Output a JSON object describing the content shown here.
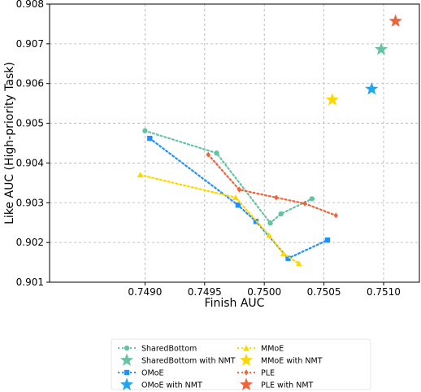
{
  "chart_data": {
    "type": "scatter",
    "title": "",
    "xlabel": "Finish AUC",
    "ylabel": "Like AUC (High-priority Task)",
    "xlim": [
      0.7482,
      0.7513
    ],
    "ylim": [
      0.901,
      0.908
    ],
    "xticks": [
      "0.7490",
      "0.7495",
      "0.7500",
      "0.7505",
      "0.7510"
    ],
    "yticks": [
      "0.901",
      "0.902",
      "0.903",
      "0.904",
      "0.905",
      "0.906",
      "0.907",
      "0.908"
    ],
    "grid": true,
    "legend_position": "bottom",
    "series": [
      {
        "name": "SharedBottom",
        "color": "#66c2a5",
        "marker": "circle",
        "style": "dotted-line",
        "x": [
          0.749,
          0.7496,
          0.75005,
          0.75014,
          0.7504
        ],
        "y": [
          0.90481,
          0.90425,
          0.90249,
          0.90272,
          0.9031
        ]
      },
      {
        "name": "SharedBottom with NMT",
        "color": "#66c2a5",
        "marker": "star",
        "style": "point",
        "x": [
          0.75098
        ],
        "y": [
          0.90686
        ]
      },
      {
        "name": "OMoE",
        "color": "#1e90ff",
        "marker": "square",
        "style": "dotted-line",
        "x": [
          0.74904,
          0.74978,
          0.74993,
          0.7502,
          0.75053
        ],
        "y": [
          0.90462,
          0.90294,
          0.90253,
          0.9016,
          0.90206
        ]
      },
      {
        "name": "OMoE with NMT",
        "color": "#1ea7f0",
        "marker": "star",
        "style": "point",
        "x": [
          0.7509
        ],
        "y": [
          0.90586
        ]
      },
      {
        "name": "MMoE",
        "color": "#ffd700",
        "marker": "triangle",
        "style": "dotted-line",
        "x": [
          0.74896,
          0.74976,
          0.75004,
          0.75016,
          0.75029
        ],
        "y": [
          0.9037,
          0.90313,
          0.90218,
          0.90172,
          0.90147
        ]
      },
      {
        "name": "MMoE with NMT",
        "color": "#ffd700",
        "marker": "star",
        "style": "point",
        "x": [
          0.75057
        ],
        "y": [
          0.90559
        ]
      },
      {
        "name": "PLE",
        "color": "#f0643c",
        "marker": "diamond",
        "style": "dotted-line",
        "x": [
          0.74953,
          0.74979,
          0.7501,
          0.75034,
          0.7506
        ],
        "y": [
          0.90421,
          0.90333,
          0.90313,
          0.90298,
          0.90268
        ]
      },
      {
        "name": "PLE with NMT",
        "color": "#f0643c",
        "marker": "star",
        "style": "point",
        "x": [
          0.7511
        ],
        "y": [
          0.90757
        ]
      }
    ]
  }
}
